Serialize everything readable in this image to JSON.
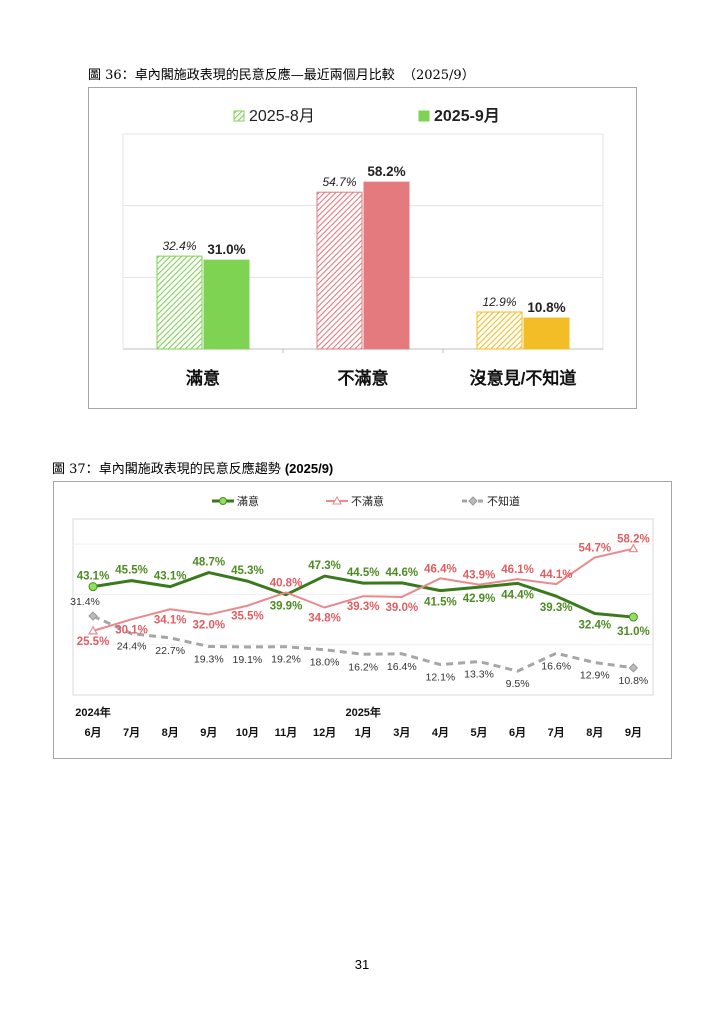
{
  "page": {
    "number": "31"
  },
  "chart_data": [
    {
      "type": "bar",
      "figure_label": "圖 36：",
      "title": "卓內閣施政表現的民意反應—最近兩個月比較",
      "subtitle": "（2025/9）",
      "categories": [
        "滿意",
        "不滿意",
        "沒意見/不知道"
      ],
      "series": [
        {
          "name": "2025-8月",
          "values": [
            32.4,
            54.7,
            12.9
          ],
          "labels": [
            "32.4%",
            "54.7%",
            "12.9%"
          ],
          "pattern": "hatched"
        },
        {
          "name": "2025-9月",
          "values": [
            31.0,
            58.2,
            10.8
          ],
          "labels": [
            "31.0%",
            "58.2%",
            "10.8%"
          ],
          "pattern": "solid"
        }
      ],
      "colors": {
        "滿意": "#7fd353",
        "不滿意": "#e57a7e",
        "沒意見/不知道": "#f2bd27"
      },
      "ylim": [
        0,
        75
      ],
      "gridlines": [
        25,
        50
      ],
      "legend_position": "top"
    },
    {
      "type": "line",
      "figure_label": "圖 37：",
      "title": "卓內閣施政表現的民意反應趨勢",
      "subtitle": "(2025/9)",
      "x": [
        "6月",
        "7月",
        "8月",
        "9月",
        "10月",
        "11月",
        "12月",
        "1月",
        "3月",
        "4月",
        "5月",
        "6月",
        "7月",
        "8月",
        "9月"
      ],
      "year_labels": [
        {
          "label": "2024年",
          "index": 0
        },
        {
          "label": "2025年",
          "index": 7
        }
      ],
      "series": [
        {
          "name": "滿意",
          "color": "#3a7a1c",
          "label_color": "#4c8c22",
          "marker": "circle",
          "values": [
            43.1,
            45.5,
            43.1,
            48.7,
            45.3,
            39.9,
            47.3,
            44.5,
            44.6,
            41.5,
            42.9,
            44.4,
            39.3,
            32.4,
            31.0
          ],
          "labels": [
            "43.1%",
            "45.5%",
            "43.1%",
            "48.7%",
            "45.3%",
            "39.9%",
            "47.3%",
            "44.5%",
            "44.6%",
            "41.5%",
            "42.9%",
            "44.4%",
            "39.3%",
            "32.4%",
            "31.0%"
          ]
        },
        {
          "name": "不滿意",
          "color": "#e88a8e",
          "label_color": "#e25d62",
          "marker": "triangle",
          "values": [
            25.5,
            30.1,
            34.1,
            32.0,
            35.5,
            40.8,
            34.8,
            39.3,
            39.0,
            46.4,
            43.9,
            46.1,
            44.1,
            54.7,
            58.2
          ],
          "labels": [
            "25.5%",
            "30.1%",
            "34.1%",
            "32.0%",
            "35.5%",
            "40.8%",
            "34.8%",
            "39.3%",
            "39.0%",
            "46.4%",
            "43.9%",
            "46.1%",
            "44.1%",
            "54.7%",
            "58.2%"
          ]
        },
        {
          "name": "不知道",
          "color": "#a6a6a6",
          "label_color": "#333333",
          "marker": "diamond",
          "values": [
            31.4,
            24.4,
            22.7,
            19.3,
            19.1,
            19.2,
            18.0,
            16.2,
            16.4,
            12.1,
            13.3,
            9.5,
            16.6,
            12.9,
            10.8
          ],
          "labels": [
            "31.4%",
            "24.4%",
            "22.7%",
            "19.3%",
            "19.1%",
            "19.2%",
            "18.0%",
            "16.2%",
            "16.4%",
            "12.1%",
            "13.3%",
            "9.5%",
            "16.6%",
            "12.9%",
            "10.8%"
          ]
        }
      ],
      "ylim": [
        0,
        70
      ],
      "legend_position": "top"
    }
  ]
}
